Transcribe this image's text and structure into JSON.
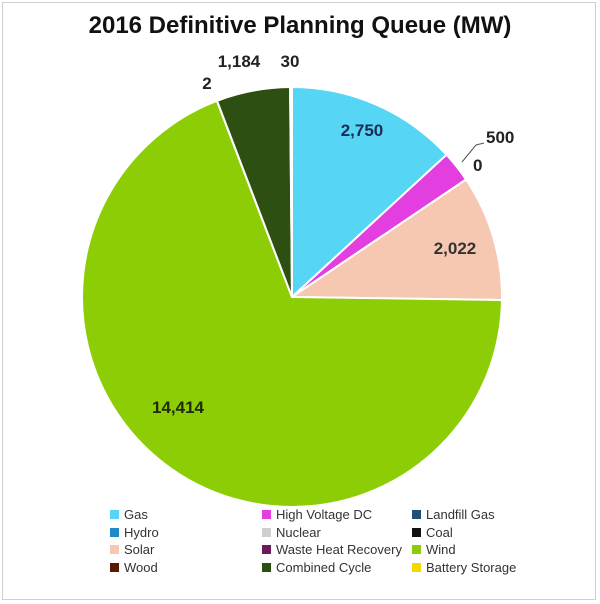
{
  "chart_data": {
    "type": "pie",
    "title": "2016 Definitive Planning Queue (MW)",
    "slices": [
      {
        "name": "Gas",
        "value": 2750,
        "label": "2,750",
        "color": "#56d5f4"
      },
      {
        "name": "High Voltage DC",
        "value": 500,
        "label": "500",
        "color": "#e33fe0"
      },
      {
        "name": "Landfill Gas",
        "value": 0,
        "label": "0",
        "color": "#1f4e79"
      },
      {
        "name": "Solar",
        "value": 2022,
        "label": "2,022",
        "color": "#f6c7b1"
      },
      {
        "name": "Wind",
        "value": 14414,
        "label": "14,414",
        "color": "#8ccd06"
      },
      {
        "name": "Wood",
        "value": 2,
        "label": "2",
        "color": "#5a1a00"
      },
      {
        "name": "Combined Cycle",
        "value": 1184,
        "label": "1,184",
        "color": "#2e4f12"
      },
      {
        "name": "Battery Storage",
        "value": 30,
        "label": "30",
        "color": "#f5d800"
      }
    ],
    "legend": {
      "placement": "bottom",
      "items": [
        {
          "label": "Gas",
          "color": "#56d5f4"
        },
        {
          "label": "High Voltage DC",
          "color": "#e33fe0"
        },
        {
          "label": "Landfill Gas",
          "color": "#1f4e79"
        },
        {
          "label": "Hydro",
          "color": "#1e88c8"
        },
        {
          "label": "Nuclear",
          "color": "#cfcfcf"
        },
        {
          "label": "Coal",
          "color": "#111111"
        },
        {
          "label": "Solar",
          "color": "#f6c7b1"
        },
        {
          "label": "Waste Heat Recovery",
          "color": "#6e1a5a"
        },
        {
          "label": "Wind",
          "color": "#8ccd06"
        },
        {
          "label": "Wood",
          "color": "#5a1a00"
        },
        {
          "label": "Combined Cycle",
          "color": "#2e4f12"
        },
        {
          "label": "Battery Storage",
          "color": "#f5d800"
        }
      ]
    }
  }
}
